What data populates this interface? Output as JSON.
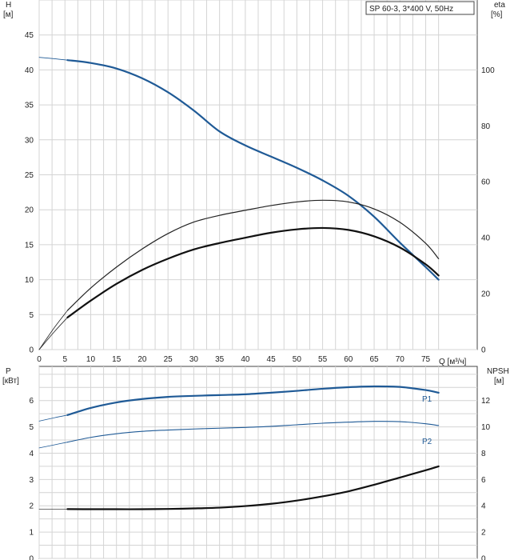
{
  "chart_data": [
    {
      "type": "line",
      "title": "SP 60-3, 3*400 V, 50Hz",
      "xlabel": "Q [м³/ч]",
      "ylabel": "H",
      "ylabel_unit": "[м]",
      "y2label": "eta",
      "y2label_unit": "[%]",
      "xlim": [
        0,
        85
      ],
      "xticks": [
        0,
        5,
        10,
        15,
        20,
        25,
        30,
        35,
        40,
        45,
        50,
        55,
        60,
        65,
        70,
        75
      ],
      "ylim": [
        0,
        50
      ],
      "yticks": [
        0,
        5,
        10,
        15,
        20,
        25,
        30,
        35,
        40,
        45
      ],
      "y2lim": [
        0,
        125
      ],
      "y2ticks": [
        0,
        20,
        40,
        60,
        80,
        100
      ],
      "grid": true,
      "series": [
        {
          "key": "head_ext",
          "axis": "left",
          "color": "#1f5a96",
          "width": 0.8,
          "x": [
            0,
            3,
            5.5
          ],
          "y": [
            41.8,
            41.6,
            41.4
          ]
        },
        {
          "key": "head",
          "axis": "left",
          "color": "#1f5a96",
          "width": 2.2,
          "x": [
            5.5,
            10,
            15,
            20,
            25,
            30,
            35,
            40,
            45,
            50,
            55,
            60,
            65,
            70,
            75,
            77.5
          ],
          "y": [
            41.4,
            41.0,
            40.2,
            38.8,
            36.8,
            34.2,
            31.2,
            29.2,
            27.6,
            26.0,
            24.2,
            22.0,
            19.0,
            15.3,
            11.8,
            10.0
          ]
        },
        {
          "key": "eta1_ext",
          "axis": "right",
          "color": "#222222",
          "width": 0.8,
          "x": [
            0,
            3,
            5.5
          ],
          "y": [
            0,
            8,
            14
          ]
        },
        {
          "key": "eta1",
          "axis": "right",
          "color": "#222222",
          "width": 1.2,
          "x": [
            5.5,
            10,
            15,
            20,
            25,
            30,
            35,
            40,
            45,
            50,
            55,
            60,
            65,
            70,
            75,
            77.5
          ],
          "y": [
            14,
            22,
            29.5,
            36,
            41.5,
            45.6,
            48,
            49.8,
            51.5,
            52.8,
            53.4,
            52.8,
            50.3,
            45.5,
            38,
            32.5
          ]
        },
        {
          "key": "eta2_ext",
          "axis": "right",
          "color": "#222222",
          "width": 0.8,
          "x": [
            0,
            3,
            5.5
          ],
          "y": [
            0,
            6.5,
            11.5
          ]
        },
        {
          "key": "eta2",
          "axis": "right",
          "color": "#111111",
          "width": 2.2,
          "x": [
            5.5,
            10,
            15,
            20,
            25,
            30,
            35,
            40,
            45,
            50,
            55,
            60,
            65,
            70,
            75,
            77.5
          ],
          "y": [
            11.5,
            17.5,
            23.5,
            28.5,
            32.5,
            35.8,
            38.1,
            40,
            41.8,
            43,
            43.5,
            42.8,
            40.5,
            36.5,
            30.5,
            26.5
          ]
        }
      ]
    },
    {
      "type": "line",
      "xlim": [
        0,
        85
      ],
      "ylabel": "P",
      "ylabel_unit": "[кВт]",
      "y2label": "NPSH",
      "y2label_unit": "[м]",
      "ylim": [
        0,
        7.3
      ],
      "yticks": [
        0,
        1,
        2,
        3,
        4,
        5,
        6
      ],
      "y2lim": [
        0,
        14.6
      ],
      "y2ticks": [
        0,
        2,
        4,
        6,
        8,
        10,
        12
      ],
      "grid": true,
      "series": [
        {
          "key": "p1_ext",
          "axis": "left",
          "color": "#1f5a96",
          "width": 0.8,
          "x": [
            0,
            3,
            5.5
          ],
          "y": [
            5.22,
            5.35,
            5.45
          ]
        },
        {
          "key": "p1",
          "axis": "left",
          "color": "#1f5a96",
          "width": 2.2,
          "name": "P1",
          "x": [
            5.5,
            10,
            15,
            20,
            25,
            30,
            35,
            40,
            45,
            50,
            55,
            60,
            65,
            70,
            75,
            77.5
          ],
          "y": [
            5.45,
            5.72,
            5.93,
            6.06,
            6.14,
            6.18,
            6.21,
            6.24,
            6.3,
            6.37,
            6.45,
            6.51,
            6.54,
            6.52,
            6.4,
            6.3
          ]
        },
        {
          "key": "p2_ext",
          "axis": "left",
          "color": "#1f5a96",
          "width": 0.8,
          "x": [
            0,
            3,
            5.5
          ],
          "y": [
            4.2,
            4.32,
            4.42
          ]
        },
        {
          "key": "p2",
          "axis": "left",
          "color": "#1f5a96",
          "width": 1.1,
          "name": "P2",
          "x": [
            5.5,
            10,
            15,
            20,
            25,
            30,
            35,
            40,
            45,
            50,
            55,
            60,
            65,
            70,
            75,
            77.5
          ],
          "y": [
            4.42,
            4.6,
            4.74,
            4.83,
            4.88,
            4.92,
            4.95,
            4.98,
            5.02,
            5.08,
            5.14,
            5.18,
            5.21,
            5.2,
            5.12,
            5.05
          ]
        },
        {
          "key": "npsh_ext",
          "axis": "right",
          "color": "#444444",
          "width": 0.8,
          "x": [
            0,
            3,
            5.5
          ],
          "y": [
            3.75,
            3.75,
            3.75
          ]
        },
        {
          "key": "npsh",
          "axis": "right",
          "color": "#111111",
          "width": 2.2,
          "x": [
            5.5,
            10,
            15,
            20,
            25,
            30,
            35,
            40,
            45,
            50,
            55,
            60,
            65,
            70,
            75,
            77.5
          ],
          "y": [
            3.75,
            3.74,
            3.74,
            3.74,
            3.76,
            3.8,
            3.86,
            3.98,
            4.15,
            4.4,
            4.72,
            5.1,
            5.6,
            6.15,
            6.7,
            7.0
          ]
        }
      ]
    }
  ]
}
